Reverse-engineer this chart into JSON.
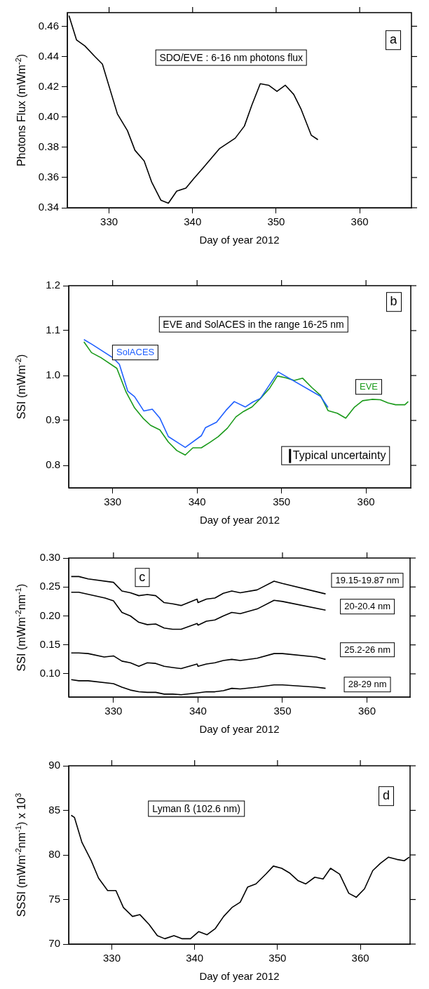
{
  "chart_data": [
    {
      "type": "line",
      "title": "SDO/EVE : 6-16 nm photons flux",
      "xlabel": "Day of year 2012",
      "ylabel": "Photons Flux (mWm$^{-2}$)",
      "annotations": [
        "a"
      ],
      "marker": "none",
      "xlim": [
        325,
        366.2
      ],
      "xticks": [
        330,
        340,
        350,
        360
      ],
      "ylim": [
        0.34,
        0.469
      ],
      "yticks": [
        0.34,
        0.36,
        0.38,
        {
          "value": 0.4,
          "label": "0.40"
        },
        0.42,
        0.44,
        0.46
      ],
      "series": [
        {
          "color": "#000000",
          "x": [
            325.2,
            326.1,
            327.1,
            328.3,
            329.2,
            331.0,
            332.2,
            333.1,
            334.2,
            335.1,
            336.2,
            337.1,
            338.1,
            339.2,
            340.1,
            341.2,
            343.2,
            345.1,
            346.2,
            347.1,
            348.1,
            349.1,
            350.1,
            351.1,
            352.1,
            353.0,
            354.2,
            355.0
          ],
          "values": [
            0.467,
            0.451,
            0.447,
            0.44,
            0.435,
            0.402,
            0.391,
            0.378,
            0.371,
            0.357,
            0.345,
            0.343,
            0.351,
            0.353,
            0.359,
            0.366,
            0.379,
            0.386,
            0.394,
            0.408,
            0.422,
            0.421,
            0.417,
            0.421,
            0.415,
            0.405,
            0.388,
            0.385
          ]
        }
      ]
    },
    {
      "type": "line",
      "title": "EVE and SolACES in the range 16-25 nm",
      "xlabel": "Day of year 2012",
      "ylabel": "SSI (mWm$^{-2}$)",
      "annotations": [
        "b",
        "Typical uncertainty"
      ],
      "marker": "none",
      "xlim": [
        324.8,
        365.3
      ],
      "xticks": [
        330,
        340,
        350,
        360
      ],
      "ylim": [
        0.75,
        1.2
      ],
      "yticks": [
        0.8,
        0.9,
        {
          "value": 1,
          "label": "1.0"
        },
        1.1,
        1.2
      ],
      "series": [
        {
          "name": "SolACES",
          "color": "#1f5fff",
          "x": [
            326.6,
            327.6,
            330.0,
            330.8,
            331.8,
            332.6,
            333.7,
            334.7,
            335.6,
            336.6,
            338.6,
            340.5,
            341.0,
            342.3,
            343.4,
            344.4,
            345.7,
            346.6,
            347.5,
            349.6,
            354.6,
            355.5
          ],
          "values": [
            1.08,
            1.069,
            1.04,
            1.025,
            0.965,
            0.953,
            0.921,
            0.925,
            0.905,
            0.864,
            0.84,
            0.866,
            0.884,
            0.896,
            0.922,
            0.942,
            0.93,
            0.941,
            0.949,
            1.008,
            0.954,
            0.929
          ]
        },
        {
          "name": "EVE",
          "color": "#1a9a1a",
          "x": [
            326.6,
            327.5,
            328.6,
            330.5,
            331.6,
            332.6,
            333.6,
            334.5,
            335.6,
            336.6,
            337.6,
            338.6,
            339.5,
            340.5,
            341.5,
            342.5,
            343.6,
            344.6,
            345.5,
            346.5,
            347.5,
            348.6,
            349.5,
            350.5,
            351.5,
            352.5,
            353.6,
            354.6,
            355.5,
            356.6,
            357.6,
            358.6,
            359.6,
            360.7,
            361.7,
            362.6,
            363.5,
            364.6,
            365.0
          ],
          "values": [
            1.075,
            1.051,
            1.04,
            1.016,
            0.963,
            0.928,
            0.905,
            0.889,
            0.879,
            0.852,
            0.833,
            0.823,
            0.839,
            0.839,
            0.851,
            0.864,
            0.883,
            0.908,
            0.92,
            0.93,
            0.949,
            0.972,
            0.999,
            0.995,
            0.989,
            0.994,
            0.973,
            0.956,
            0.922,
            0.916,
            0.905,
            0.929,
            0.944,
            0.947,
            0.946,
            0.939,
            0.935,
            0.935,
            0.942
          ]
        }
      ]
    },
    {
      "type": "line",
      "xlabel": "Day of year 2012",
      "ylabel": "SSI (mWm$^{-2}$nm$^{-1}$)",
      "annotations": [
        "c"
      ],
      "marker": "none",
      "xlim": [
        324.7,
        365.1
      ],
      "xticks": [
        330,
        340,
        350,
        360
      ],
      "ylim": [
        0.06,
        0.3
      ],
      "yticks": [
        {
          "value": 0.1,
          "label": "0.10"
        },
        0.15,
        {
          "value": 0.2,
          "label": "0.20"
        },
        0.25,
        {
          "value": 0.3,
          "label": "0.30"
        }
      ],
      "series": [
        {
          "name": "19.15-19.87 nm",
          "color": "#000000",
          "x": [
            325.0,
            325.9,
            327.0,
            330.0,
            331.0,
            332.0,
            333.0,
            334.0,
            335.0,
            336.0,
            337.0,
            338.0,
            339.9,
            340.0,
            341.0,
            342.0,
            343.0,
            344.0,
            345.0,
            347.0,
            349.0,
            350.0,
            355.1
          ],
          "values": [
            0.268,
            0.268,
            0.264,
            0.258,
            0.243,
            0.24,
            0.235,
            0.237,
            0.235,
            0.223,
            0.221,
            0.218,
            0.229,
            0.223,
            0.229,
            0.231,
            0.239,
            0.243,
            0.24,
            0.245,
            0.26,
            0.256,
            0.238
          ]
        },
        {
          "name": "20-20.4 nm",
          "color": "#000000",
          "x": [
            325.0,
            325.9,
            329.0,
            330.0,
            331.0,
            332.0,
            333.0,
            334.0,
            335.0,
            336.0,
            337.0,
            338.0,
            339.9,
            340.0,
            341.0,
            342.0,
            343.0,
            344.0,
            345.0,
            347.0,
            349.0,
            350.0,
            355.1
          ],
          "values": [
            0.241,
            0.241,
            0.231,
            0.226,
            0.206,
            0.2,
            0.189,
            0.185,
            0.186,
            0.179,
            0.177,
            0.177,
            0.187,
            0.184,
            0.191,
            0.193,
            0.2,
            0.206,
            0.204,
            0.212,
            0.227,
            0.225,
            0.21
          ]
        },
        {
          "name": "25.2-26 nm",
          "color": "#000000",
          "x": [
            325.0,
            325.9,
            327.0,
            328.9,
            330.0,
            331.0,
            332.0,
            333.0,
            334.0,
            335.0,
            336.0,
            337.0,
            338.0,
            339.9,
            340.0,
            341.0,
            342.0,
            343.0,
            344.0,
            345.0,
            347.0,
            349.0,
            350.0,
            354.0,
            355.1
          ],
          "values": [
            0.136,
            0.136,
            0.135,
            0.129,
            0.131,
            0.122,
            0.119,
            0.113,
            0.119,
            0.118,
            0.113,
            0.111,
            0.109,
            0.117,
            0.113,
            0.117,
            0.119,
            0.123,
            0.125,
            0.123,
            0.127,
            0.135,
            0.135,
            0.129,
            0.125
          ]
        },
        {
          "name": "28-29 nm",
          "color": "#000000",
          "x": [
            325.0,
            325.9,
            327.0,
            330.0,
            331.0,
            332.0,
            333.0,
            334.0,
            335.0,
            336.0,
            337.0,
            338.0,
            339.9,
            341.0,
            342.0,
            343.0,
            344.0,
            345.0,
            347.0,
            349.0,
            350.0,
            354.0,
            355.1
          ],
          "values": [
            0.09,
            0.088,
            0.088,
            0.083,
            0.077,
            0.072,
            0.069,
            0.068,
            0.068,
            0.065,
            0.065,
            0.064,
            0.067,
            0.069,
            0.069,
            0.071,
            0.075,
            0.074,
            0.077,
            0.081,
            0.081,
            0.077,
            0.075
          ]
        }
      ]
    },
    {
      "type": "line",
      "title": "Lyman ß (102.6 nm)",
      "xlabel": "Day of year 2012",
      "ylabel": "SSSI (mWm$^{-2}$nm$^{-1}$) x 10$^{3}$",
      "annotations": [
        "d"
      ],
      "marker": "none",
      "xlim": [
        324.8,
        366
      ],
      "xticks": [
        330,
        340,
        350,
        360
      ],
      "ylim": [
        70,
        90
      ],
      "yticks": [
        70,
        75,
        80,
        85,
        90
      ],
      "series": [
        {
          "color": "#000000",
          "x": [
            325.1,
            325.5,
            326.4,
            327.5,
            328.4,
            329.5,
            330.5,
            331.4,
            332.5,
            333.4,
            334.5,
            335.5,
            336.4,
            337.5,
            338.5,
            339.5,
            340.5,
            341.5,
            342.5,
            343.5,
            344.5,
            345.5,
            346.4,
            347.4,
            348.6,
            349.5,
            350.5,
            351.5,
            352.5,
            353.4,
            354.5,
            355.5,
            356.4,
            357.5,
            358.6,
            359.5,
            360.5,
            361.5,
            362.4,
            363.4,
            364.4,
            365.3,
            365.9
          ],
          "values": [
            84.45,
            84.2,
            81.4,
            79.4,
            77.4,
            76.0,
            76.0,
            74.1,
            73.1,
            73.3,
            72.2,
            70.95,
            70.6,
            70.95,
            70.6,
            70.6,
            71.4,
            71.05,
            71.75,
            73.1,
            74.1,
            74.7,
            76.4,
            76.75,
            77.85,
            78.75,
            78.5,
            77.95,
            77.1,
            76.75,
            77.5,
            77.3,
            78.5,
            77.85,
            75.7,
            75.25,
            76.2,
            78.25,
            79.05,
            79.75,
            79.5,
            79.35,
            79.75
          ]
        }
      ]
    }
  ]
}
